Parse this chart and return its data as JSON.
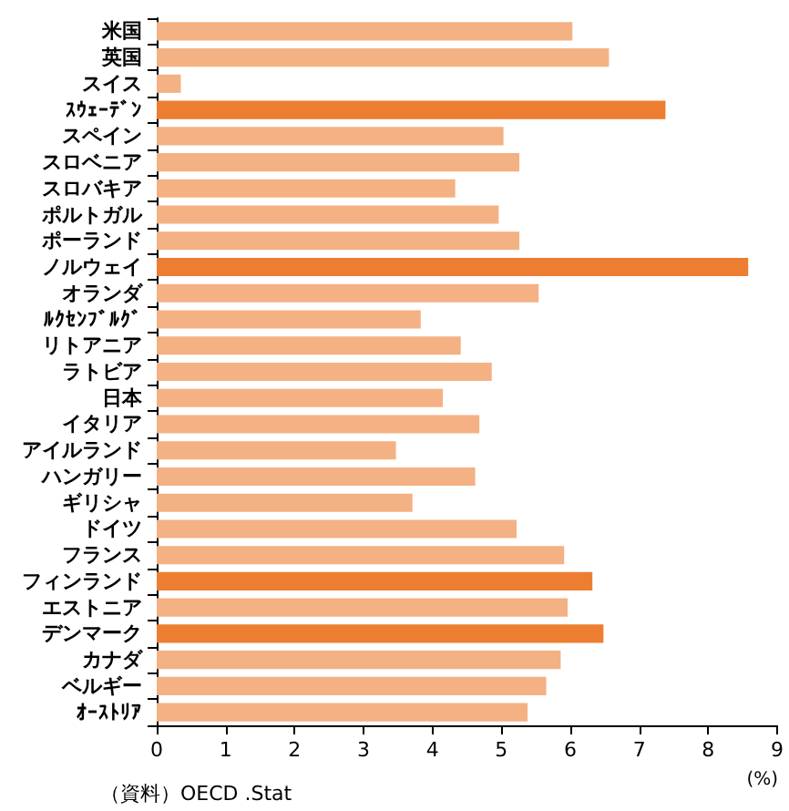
{
  "chart_data": {
    "type": "bar",
    "orientation": "horizontal",
    "xlabel": "(%)",
    "categories": [
      "米国",
      "英国",
      "スイス",
      "ｽｳｪｰﾃﾞﾝ",
      "スペイン",
      "スロベニア",
      "スロバキア",
      "ポルトガル",
      "ポーランド",
      "ノルウェイ",
      "オランダ",
      "ﾙｸｾﾝﾌﾞﾙｸﾞ",
      "リトアニア",
      "ラトビア",
      "日本",
      "イタリア",
      "アイルランド",
      "ハンガリー",
      "ギリシャ",
      "ドイツ",
      "フランス",
      "フィンランド",
      "エストニア",
      "デンマーク",
      "カナダ",
      "ベルギー",
      "ｵｰｽﾄﾘｱ"
    ],
    "values": [
      6.03,
      6.56,
      0.35,
      7.38,
      5.03,
      5.26,
      4.33,
      4.96,
      5.26,
      8.58,
      5.54,
      3.83,
      4.41,
      4.86,
      4.15,
      4.68,
      3.47,
      4.62,
      3.71,
      5.22,
      5.91,
      6.32,
      5.96,
      6.48,
      5.86,
      5.65,
      5.38
    ],
    "colors": [
      "#f4b183",
      "#f4b183",
      "#f4b183",
      "#ed7d31",
      "#f4b183",
      "#f4b183",
      "#f4b183",
      "#f4b183",
      "#f4b183",
      "#ed7d31",
      "#f4b183",
      "#f4b183",
      "#f4b183",
      "#f4b183",
      "#f4b183",
      "#f4b183",
      "#f4b183",
      "#f4b183",
      "#f4b183",
      "#f4b183",
      "#f4b183",
      "#ed7d31",
      "#f4b183",
      "#ed7d31",
      "#f4b183",
      "#f4b183",
      "#f4b183"
    ],
    "xlim": [
      0,
      9
    ],
    "xticks": [
      0,
      1,
      2,
      3,
      4,
      5,
      6,
      7,
      8,
      9
    ],
    "grid": false,
    "annotations": [
      "（資料）OECD .Stat"
    ]
  }
}
